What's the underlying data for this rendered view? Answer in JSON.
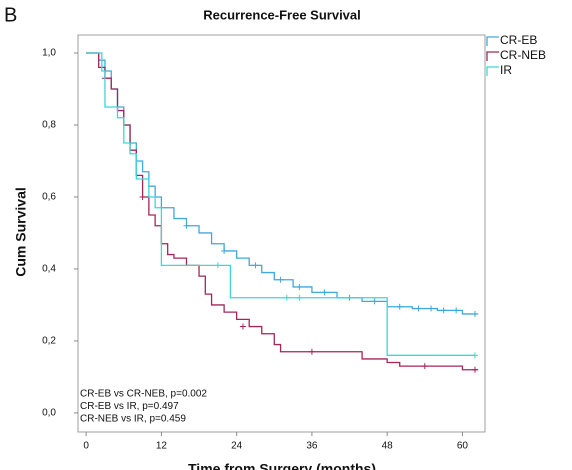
{
  "chart_data": {
    "type": "step",
    "panel_label": "B",
    "title": "Recurrence-Free Survival",
    "xlabel": "Time from Surgery (months)",
    "ylabel": "Cum Survival",
    "xlim": [
      -1.3,
      63.6
    ],
    "ylim": [
      -0.053,
      1.05
    ],
    "xticks": [
      0,
      12,
      24,
      36,
      48,
      60
    ],
    "yticks": [
      {
        "value": 0,
        "label": "0,0"
      },
      {
        "value": 0.2,
        "label": "0,2"
      },
      {
        "value": 0.4,
        "label": "0,4"
      },
      {
        "value": 0.6,
        "label": "0,6"
      },
      {
        "value": 0.8,
        "label": "0,8"
      },
      {
        "value": 1,
        "label": "1,0"
      }
    ],
    "legend": "top-right",
    "annotations": [
      "CR-EB vs CR-NEB, p=0.002",
      "CR-EB vs IR, p=0.497",
      "CR-NEB vs IR, p=0.459"
    ],
    "series": [
      {
        "name": "CR-EB",
        "color": "#3fa9dc",
        "x": [
          0,
          2,
          3,
          4,
          5,
          6,
          7,
          8,
          9,
          10,
          11,
          12,
          14,
          16,
          18,
          20,
          22,
          24,
          26,
          28,
          30,
          33,
          36,
          40,
          44,
          48,
          52,
          56,
          60,
          62.5
        ],
        "values": [
          1.0,
          0.98,
          0.95,
          0.9,
          0.85,
          0.8,
          0.75,
          0.7,
          0.67,
          0.63,
          0.6,
          0.57,
          0.54,
          0.52,
          0.5,
          0.47,
          0.45,
          0.43,
          0.41,
          0.39,
          0.37,
          0.35,
          0.335,
          0.32,
          0.31,
          0.295,
          0.29,
          0.285,
          0.275,
          0.275
        ],
        "censor_x": [
          16,
          22,
          27,
          31,
          34,
          38,
          42,
          46,
          50,
          53,
          55,
          57,
          59,
          62
        ],
        "censor_y": [
          0.52,
          0.45,
          0.41,
          0.37,
          0.35,
          0.335,
          0.32,
          0.31,
          0.295,
          0.29,
          0.29,
          0.285,
          0.285,
          0.275
        ]
      },
      {
        "name": "CR-NEB",
        "color": "#a3265b",
        "x": [
          0,
          2,
          3,
          4,
          5,
          6,
          7,
          8,
          9,
          10,
          11,
          12,
          13,
          14,
          16,
          18,
          19,
          20,
          22,
          24,
          26,
          28,
          30,
          31,
          36,
          44,
          48,
          50,
          60,
          62.5
        ],
        "values": [
          1.0,
          0.96,
          0.93,
          0.9,
          0.84,
          0.8,
          0.73,
          0.66,
          0.6,
          0.55,
          0.52,
          0.47,
          0.44,
          0.43,
          0.41,
          0.38,
          0.33,
          0.3,
          0.28,
          0.26,
          0.24,
          0.22,
          0.19,
          0.17,
          0.17,
          0.15,
          0.14,
          0.13,
          0.12,
          0.12
        ],
        "censor_x": [
          3,
          9,
          25,
          36,
          54,
          62
        ],
        "censor_y": [
          0.93,
          0.6,
          0.24,
          0.17,
          0.13,
          0.12
        ]
      },
      {
        "name": "IR",
        "color": "#3fd6d6",
        "x": [
          0,
          2.5,
          3,
          5,
          6,
          7,
          8,
          10,
          11,
          12,
          23,
          48,
          62
        ],
        "values": [
          1.0,
          0.95,
          0.85,
          0.82,
          0.75,
          0.72,
          0.65,
          0.6,
          0.57,
          0.41,
          0.32,
          0.16,
          0.16
        ],
        "censor_x": [
          21,
          32,
          34,
          62
        ],
        "censor_y": [
          0.41,
          0.32,
          0.32,
          0.16
        ]
      }
    ]
  }
}
